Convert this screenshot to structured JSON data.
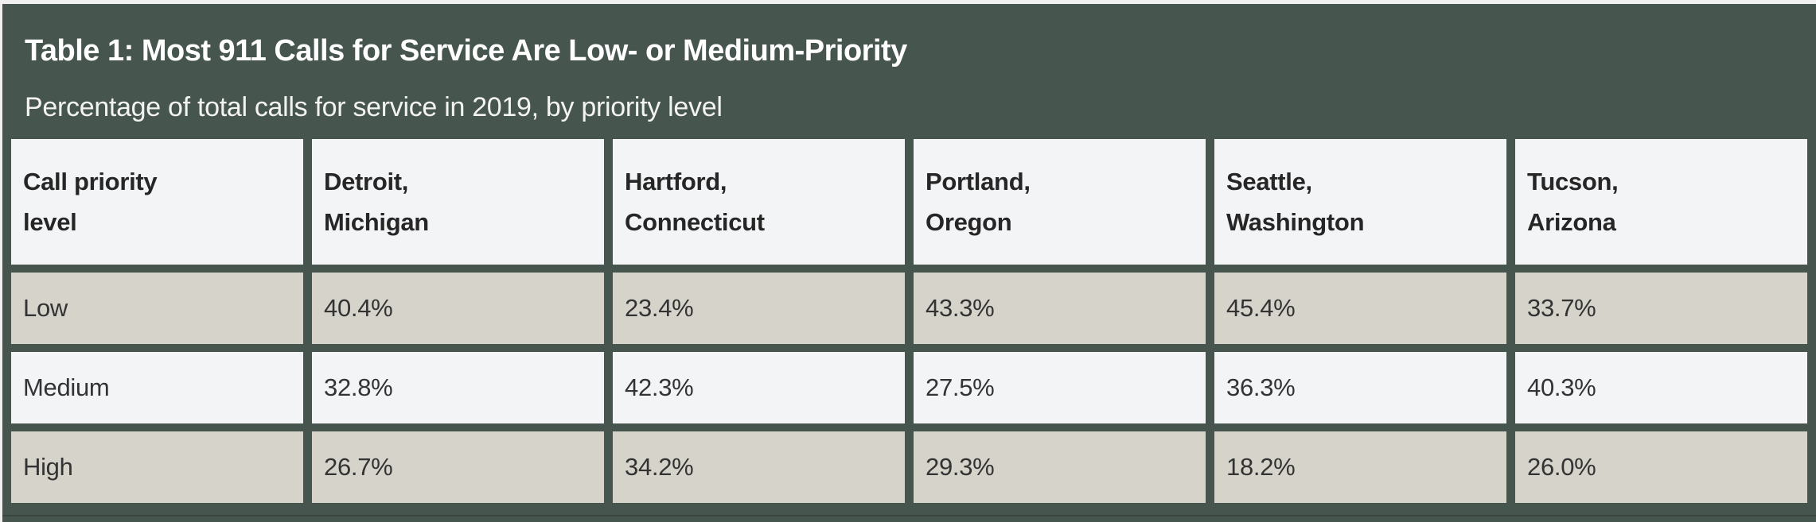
{
  "table": {
    "title": "Table 1: Most 911 Calls for Service Are Low- or Medium-Priority",
    "subtitle": "Percentage of total calls for service in 2019, by priority level",
    "columns": [
      {
        "line1": "Call priority",
        "line2": "level"
      },
      {
        "line1": "Detroit,",
        "line2": "Michigan"
      },
      {
        "line1": "Hartford,",
        "line2": "Connecticut"
      },
      {
        "line1": "Portland,",
        "line2": "Oregon"
      },
      {
        "line1": "Seattle,",
        "line2": "Washington"
      },
      {
        "line1": "Tucson,",
        "line2": "Arizona"
      }
    ],
    "rows": [
      {
        "label": "Low",
        "values": [
          "40.4%",
          "23.4%",
          "43.3%",
          "45.4%",
          "33.7%"
        ]
      },
      {
        "label": "Medium",
        "values": [
          "32.8%",
          "42.3%",
          "27.5%",
          "36.3%",
          "40.3%"
        ]
      },
      {
        "label": "High",
        "values": [
          "26.7%",
          "34.2%",
          "29.3%",
          "18.2%",
          "26.0%"
        ]
      }
    ]
  },
  "chart_data": {
    "type": "table",
    "title": "Table 1: Most 911 Calls for Service Are Low- or Medium-Priority",
    "subtitle": "Percentage of total calls for service in 2019, by priority level",
    "columns": [
      "Call priority level",
      "Detroit, Michigan",
      "Hartford, Connecticut",
      "Portland, Oregon",
      "Seattle, Washington",
      "Tucson, Arizona"
    ],
    "rows": [
      [
        "Low",
        40.4,
        23.4,
        43.3,
        45.4,
        33.7
      ],
      [
        "Medium",
        32.8,
        42.3,
        27.5,
        36.3,
        40.3
      ],
      [
        "High",
        26.7,
        34.2,
        29.3,
        18.2,
        26.0
      ]
    ],
    "units": "percent of total 911 calls for service, 2019"
  },
  "colors": {
    "card_green": "#46554e",
    "row_beige": "#d6d3cb",
    "row_light": "#f3f4f6",
    "header_bg": "#f3f4f6",
    "title_text": "#ffffff",
    "cell_text": "#333333",
    "header_text": "#262626",
    "page_bg": "#f0f0f0",
    "bottom_rule": "#3a463f"
  }
}
